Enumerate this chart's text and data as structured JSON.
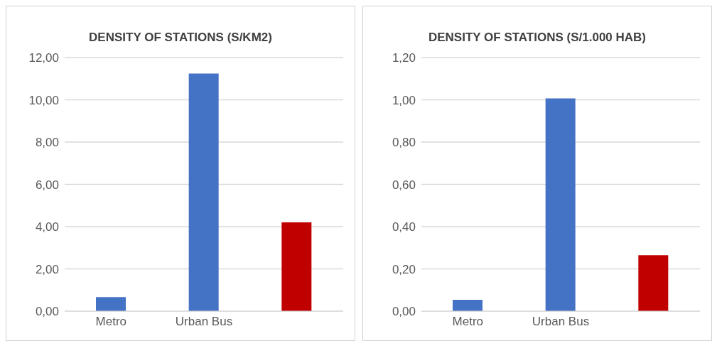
{
  "chart_data": [
    {
      "type": "bar",
      "title": "DENSITY OF STATIONS (S/KM2)",
      "categories": [
        "Metro",
        "Urban Bus",
        null
      ],
      "values": [
        0.66,
        11.24,
        4.2
      ],
      "colors": [
        "#4472c4",
        "#4472c4",
        "#c00000"
      ],
      "ylim": [
        0,
        12
      ],
      "yticks": [
        {
          "value": 0,
          "label": "0,00"
        },
        {
          "value": 2,
          "label": "2,00"
        },
        {
          "value": 4,
          "label": "4,00"
        },
        {
          "value": 6,
          "label": "6,00"
        },
        {
          "value": 8,
          "label": "8,00"
        },
        {
          "value": 10,
          "label": "10,00"
        },
        {
          "value": 12,
          "label": "12,00"
        }
      ],
      "grid": "y"
    },
    {
      "type": "bar",
      "title": "DENSITY OF STATIONS (S/1.000 HAB)",
      "categories": [
        "Metro",
        "Urban Bus",
        null
      ],
      "values": [
        0.054,
        1.007,
        0.265
      ],
      "colors": [
        "#4472c4",
        "#4472c4",
        "#c00000"
      ],
      "ylim": [
        0,
        1.2
      ],
      "yticks": [
        {
          "value": 0,
          "label": "0,00"
        },
        {
          "value": 0.2,
          "label": "0,20"
        },
        {
          "value": 0.4,
          "label": "0,40"
        },
        {
          "value": 0.6,
          "label": "0,60"
        },
        {
          "value": 0.8,
          "label": "0,80"
        },
        {
          "value": 1,
          "label": "1,00"
        },
        {
          "value": 1.2,
          "label": "1,20"
        }
      ],
      "grid": "y"
    }
  ]
}
